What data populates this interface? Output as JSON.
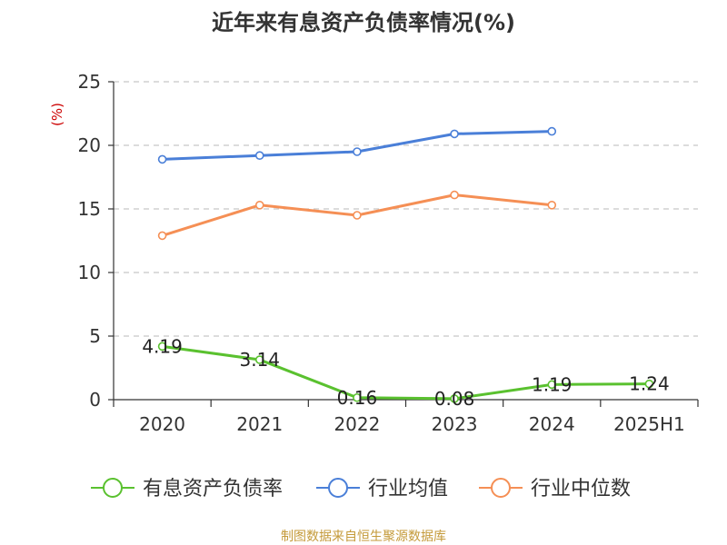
{
  "chart_data": {
    "type": "line",
    "title": "近年来有息资产负债率情况(%)",
    "ylabel": "(%)",
    "categories": [
      "2020",
      "2021",
      "2022",
      "2023",
      "2024",
      "2025H1"
    ],
    "ylim": [
      0,
      25
    ],
    "yticks": [
      0,
      5,
      10,
      15,
      20,
      25
    ],
    "grid": true,
    "legend_position": "bottom",
    "series": [
      {
        "name": "有息资产负债率",
        "color": "#5ac12f",
        "values": [
          4.19,
          3.14,
          0.16,
          0.08,
          1.19,
          1.24
        ],
        "data_labels": [
          "4.19",
          "3.14",
          "0.16",
          "0.08",
          "1.19",
          "1.24"
        ]
      },
      {
        "name": "行业均值",
        "color": "#4a7fd8",
        "values": [
          18.9,
          19.2,
          19.5,
          20.9,
          21.1,
          null
        ]
      },
      {
        "name": "行业中位数",
        "color": "#f58f55",
        "values": [
          12.9,
          15.3,
          14.5,
          16.1,
          15.3,
          null
        ]
      }
    ]
  },
  "source": "制图数据来自恒生聚源数据库",
  "colors": {
    "title": "#333333",
    "axis": "#333333",
    "grid": "#c8c8c8",
    "ylabel": "#cc0000",
    "source": "#c49a3a"
  }
}
